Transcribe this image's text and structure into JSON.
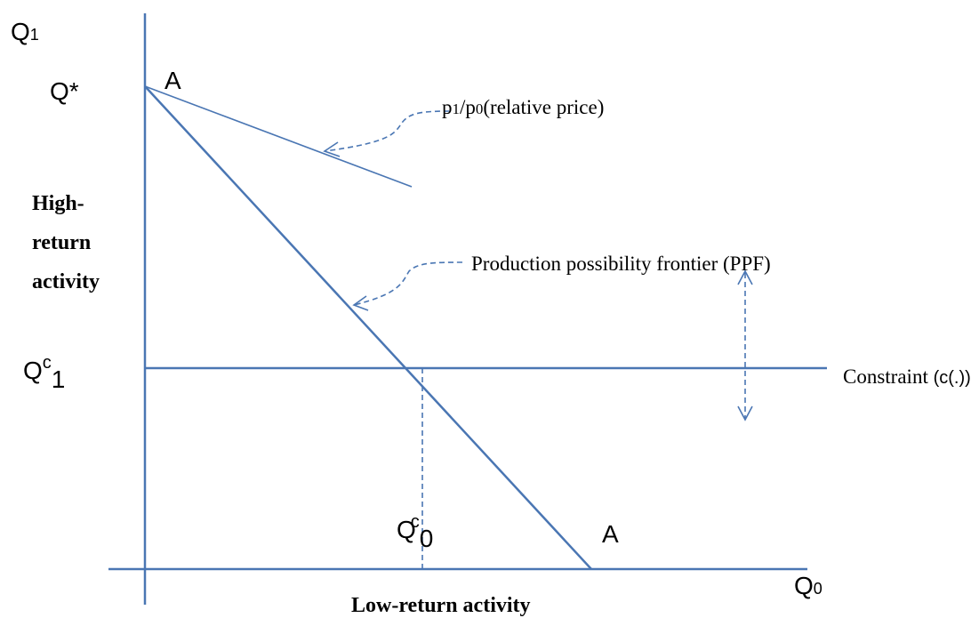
{
  "axis_labels": {
    "y": {
      "base": "Q",
      "sub": "1"
    },
    "x": {
      "base": "Q",
      "sub": "0"
    },
    "y_title": [
      "High-",
      "return",
      "activity"
    ],
    "x_title": "Low-return activity"
  },
  "points": {
    "q_star": "Q*",
    "a_top": "A",
    "a_bottom": "A",
    "qc1": {
      "base": "Q",
      "sup": "c",
      "sub": "1"
    },
    "qc0": {
      "base": "Q",
      "sup": "c",
      "sub": "0"
    }
  },
  "annotations": {
    "price": [
      "p",
      "1",
      "/p",
      "0",
      "(relative price)"
    ],
    "ppf": "Production possibility frontier (PPF)",
    "constraint": {
      "main": "Constraint",
      "paren": "(c(.))"
    }
  }
}
